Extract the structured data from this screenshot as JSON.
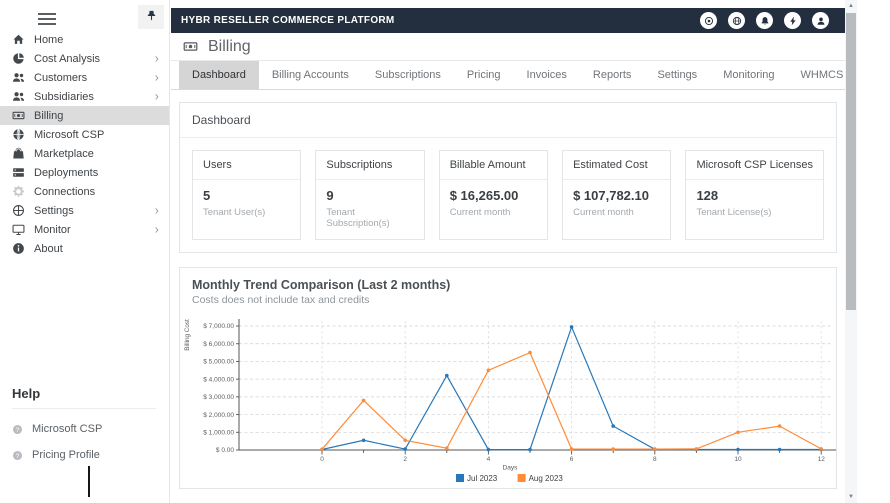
{
  "header": {
    "brand": "HYBR RESELLER COMMERCE PLATFORM",
    "actions": [
      {
        "icon": "target-icon"
      },
      {
        "icon": "globe-icon"
      },
      {
        "icon": "bell-icon"
      },
      {
        "icon": "bolt-icon"
      },
      {
        "icon": "user-icon"
      }
    ]
  },
  "page": {
    "title": "Billing"
  },
  "tabs": [
    {
      "label": "Dashboard",
      "active": true
    },
    {
      "label": "Billing Accounts"
    },
    {
      "label": "Subscriptions"
    },
    {
      "label": "Pricing"
    },
    {
      "label": "Invoices"
    },
    {
      "label": "Reports"
    },
    {
      "label": "Settings"
    },
    {
      "label": "Monitoring"
    },
    {
      "label": "WHMCS"
    }
  ],
  "sidebar": {
    "items": [
      {
        "label": "Home",
        "icon": "home"
      },
      {
        "label": "Cost Analysis",
        "icon": "pie-chart",
        "expandable": true
      },
      {
        "label": "Customers",
        "icon": "users",
        "expandable": true
      },
      {
        "label": "Subsidiaries",
        "icon": "users",
        "expandable": true
      },
      {
        "label": "Billing",
        "icon": "money-bill",
        "active": true
      },
      {
        "label": "Microsoft CSP",
        "icon": "globe"
      },
      {
        "label": "Marketplace",
        "icon": "shopping-bag"
      },
      {
        "label": "Deployments",
        "icon": "server"
      },
      {
        "label": "Connections",
        "icon": "gear",
        "muted": true
      },
      {
        "label": "Settings",
        "icon": "settings",
        "expandable": true
      },
      {
        "label": "Monitor",
        "icon": "monitor",
        "expandable": true
      },
      {
        "label": "About",
        "icon": "info"
      }
    ],
    "help": {
      "title": "Help",
      "links": [
        {
          "label": "Microsoft CSP",
          "icon": "question-circle"
        },
        {
          "label": "Pricing Profile",
          "icon": "question-circle"
        }
      ]
    }
  },
  "dashboard": {
    "title": "Dashboard",
    "cards": [
      {
        "label": "Users",
        "value": "5",
        "subtitle": "Tenant User(s)"
      },
      {
        "label": "Subscriptions",
        "value": "9",
        "subtitle": "Tenant Subscription(s)"
      },
      {
        "label": "Billable Amount",
        "value": "$ 16,265.00",
        "subtitle": "Current month"
      },
      {
        "label": "Estimated Cost",
        "value": "$ 107,782.10",
        "subtitle": "Current month"
      },
      {
        "label": "Microsoft CSP Licenses",
        "value": "128",
        "subtitle": "Tenant License(s)"
      }
    ]
  },
  "trend": {
    "title": "Monthly Trend Comparison (Last 2 months)",
    "subtitle": "Costs does not include tax and credits"
  },
  "chart_data": {
    "type": "line",
    "x": [
      0,
      1,
      2,
      3,
      4,
      5,
      6,
      7,
      8,
      9,
      10,
      11,
      12
    ],
    "series": [
      {
        "name": "Jul 2023",
        "color": "#2878b9",
        "values": [
          30,
          550,
          50,
          4200,
          20,
          20,
          6950,
          1350,
          40,
          30,
          30,
          30,
          30
        ]
      },
      {
        "name": "Aug 2023",
        "color": "#ff8b39",
        "values": [
          40,
          2800,
          550,
          100,
          4500,
          5500,
          50,
          50,
          50,
          60,
          1000,
          1350,
          60
        ]
      }
    ],
    "xlabel": "Days",
    "ylabel": "Billing Cost",
    "ylim": [
      0,
      7000
    ],
    "y_ticks": [
      0,
      1000,
      2000,
      3000,
      4000,
      5000,
      6000,
      7000
    ],
    "y_tick_labels": [
      "$ 0.00",
      "$ 1,000.00",
      "$ 2,000.00",
      "$ 3,000.00",
      "$ 4,000.00",
      "$ 5,000.00",
      "$ 6,000.00",
      "$ 7,000.00"
    ],
    "x_major_ticks": [
      0,
      2,
      4,
      6,
      8,
      10,
      12
    ],
    "grid": "dashed",
    "legend_position": "bottom"
  }
}
